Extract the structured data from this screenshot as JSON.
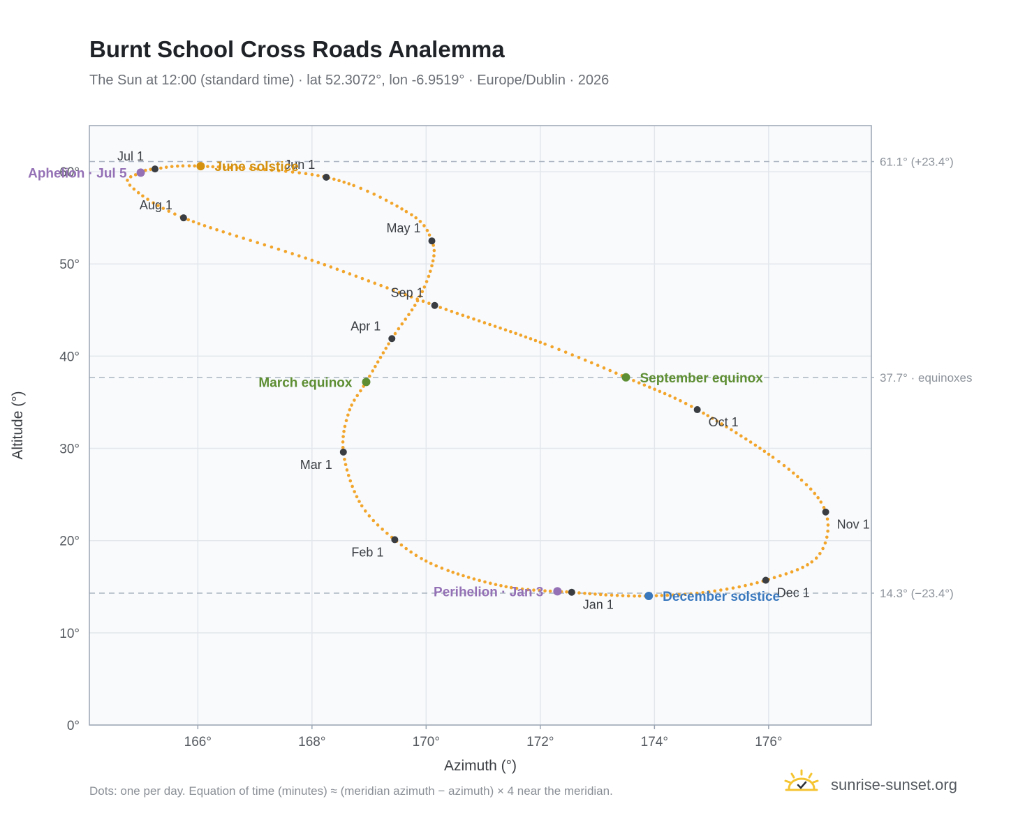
{
  "header": {
    "title": "Burnt School Cross Roads Analemma",
    "subtitle": "The Sun at 12:00 (standard time) · lat 52.3072°, lon -6.9519° · Europe/Dublin · 2026"
  },
  "footnote": "Dots: one per day. Equation of time (minutes) ≈ (meridian azimuth − azimuth) × 4 near the meridian.",
  "brand": {
    "text": "sunrise-sunset.org",
    "icon": "sun-logo-icon"
  },
  "colors": {
    "path": "#f2a52a",
    "month_marker": "#3a3d42",
    "june_solstice": "#d4900f",
    "equinox": "#5e8e33",
    "december_solstice": "#3a78be",
    "apsis": "#9470b5",
    "plot_bg": "#f8fafc",
    "grid": "#e3e7ec",
    "reference_line": "#aab4c0"
  },
  "chart_data": {
    "type": "scatter",
    "title": "Burnt School Cross Roads Analemma",
    "xlabel": "Azimuth (°)",
    "ylabel": "Altitude (°)",
    "xlim": [
      164.1,
      177.8
    ],
    "ylim": [
      0,
      65
    ],
    "x_ticks": [
      166,
      168,
      170,
      172,
      174,
      176
    ],
    "x_tick_labels": [
      "166°",
      "168°",
      "170°",
      "172°",
      "174°",
      "176°"
    ],
    "y_ticks": [
      0,
      10,
      20,
      30,
      40,
      50,
      60
    ],
    "y_tick_labels": [
      "0°",
      "10°",
      "20°",
      "30°",
      "40°",
      "50°",
      "60°"
    ],
    "grid": true,
    "path_anchors": [
      {
        "az": 172.55,
        "alt": 14.4
      },
      {
        "az": 171.4,
        "alt": 15.0
      },
      {
        "az": 170.2,
        "alt": 17.2
      },
      {
        "az": 169.45,
        "alt": 20.1
      },
      {
        "az": 168.85,
        "alt": 24.0
      },
      {
        "az": 168.55,
        "alt": 29.6
      },
      {
        "az": 168.65,
        "alt": 34.0
      },
      {
        "az": 168.95,
        "alt": 37.2
      },
      {
        "az": 169.4,
        "alt": 41.9
      },
      {
        "az": 169.85,
        "alt": 46.0
      },
      {
        "az": 170.1,
        "alt": 49.8
      },
      {
        "az": 170.1,
        "alt": 52.5
      },
      {
        "az": 169.7,
        "alt": 55.5
      },
      {
        "az": 168.25,
        "alt": 59.4
      },
      {
        "az": 166.05,
        "alt": 60.6
      },
      {
        "az": 165.25,
        "alt": 60.3
      },
      {
        "az": 165.0,
        "alt": 59.9
      },
      {
        "az": 164.8,
        "alt": 58.6
      },
      {
        "az": 165.75,
        "alt": 55.0
      },
      {
        "az": 168.0,
        "alt": 50.4
      },
      {
        "az": 170.15,
        "alt": 45.5
      },
      {
        "az": 172.0,
        "alt": 41.5
      },
      {
        "az": 173.5,
        "alt": 37.7
      },
      {
        "az": 174.75,
        "alt": 34.2
      },
      {
        "az": 176.3,
        "alt": 28.0
      },
      {
        "az": 177.0,
        "alt": 23.1
      },
      {
        "az": 176.85,
        "alt": 18.2
      },
      {
        "az": 175.95,
        "alt": 15.7
      },
      {
        "az": 174.9,
        "alt": 14.4
      },
      {
        "az": 173.9,
        "alt": 14.0
      },
      {
        "az": 173.2,
        "alt": 14.1
      },
      {
        "az": 172.55,
        "alt": 14.4
      }
    ],
    "month_markers": [
      {
        "label": "Jan 1",
        "az": 172.55,
        "alt": 14.4,
        "pos": "below-right"
      },
      {
        "label": "Feb 1",
        "az": 169.45,
        "alt": 20.1,
        "pos": "below-left"
      },
      {
        "label": "Mar 1",
        "az": 168.55,
        "alt": 29.6,
        "pos": "below-left"
      },
      {
        "label": "Apr 1",
        "az": 169.4,
        "alt": 41.9,
        "pos": "above-left"
      },
      {
        "label": "May 1",
        "az": 170.1,
        "alt": 52.5,
        "pos": "above-left"
      },
      {
        "label": "Jun 1",
        "az": 168.25,
        "alt": 59.4,
        "pos": "above-left"
      },
      {
        "label": "Jul 1",
        "az": 165.25,
        "alt": 60.3,
        "pos": "above-left"
      },
      {
        "label": "Aug 1",
        "az": 165.75,
        "alt": 55.0,
        "pos": "above-left"
      },
      {
        "label": "Sep 1",
        "az": 170.15,
        "alt": 45.5,
        "pos": "above-left"
      },
      {
        "label": "Oct 1",
        "az": 174.75,
        "alt": 34.2,
        "pos": "below-right"
      },
      {
        "label": "Nov 1",
        "az": 177.0,
        "alt": 23.1,
        "pos": "below-right"
      },
      {
        "label": "Dec 1",
        "az": 175.95,
        "alt": 15.7,
        "pos": "below-right"
      }
    ],
    "events": [
      {
        "label": "June solstice",
        "az": 166.05,
        "alt": 60.6,
        "color": "#d4900f",
        "side": "right"
      },
      {
        "label": "March equinox",
        "az": 168.95,
        "alt": 37.2,
        "color": "#5e8e33",
        "side": "left"
      },
      {
        "label": "September equinox",
        "az": 173.5,
        "alt": 37.7,
        "color": "#5e8e33",
        "side": "right"
      },
      {
        "label": "December solstice",
        "az": 173.9,
        "alt": 14.0,
        "color": "#3a78be",
        "side": "right"
      },
      {
        "label": "Aphelion · Jul 5",
        "az": 165.0,
        "alt": 59.9,
        "color": "#9470b5",
        "side": "left"
      },
      {
        "label": "Perihelion · Jan 3",
        "az": 172.3,
        "alt": 14.5,
        "color": "#9470b5",
        "side": "left"
      }
    ],
    "reference_lines": [
      {
        "alt": 61.1,
        "label": "61.1° (+23.4°)"
      },
      {
        "alt": 37.7,
        "label": "37.7° · equinoxes"
      },
      {
        "alt": 14.3,
        "label": "14.3° (−23.4°)"
      }
    ]
  }
}
